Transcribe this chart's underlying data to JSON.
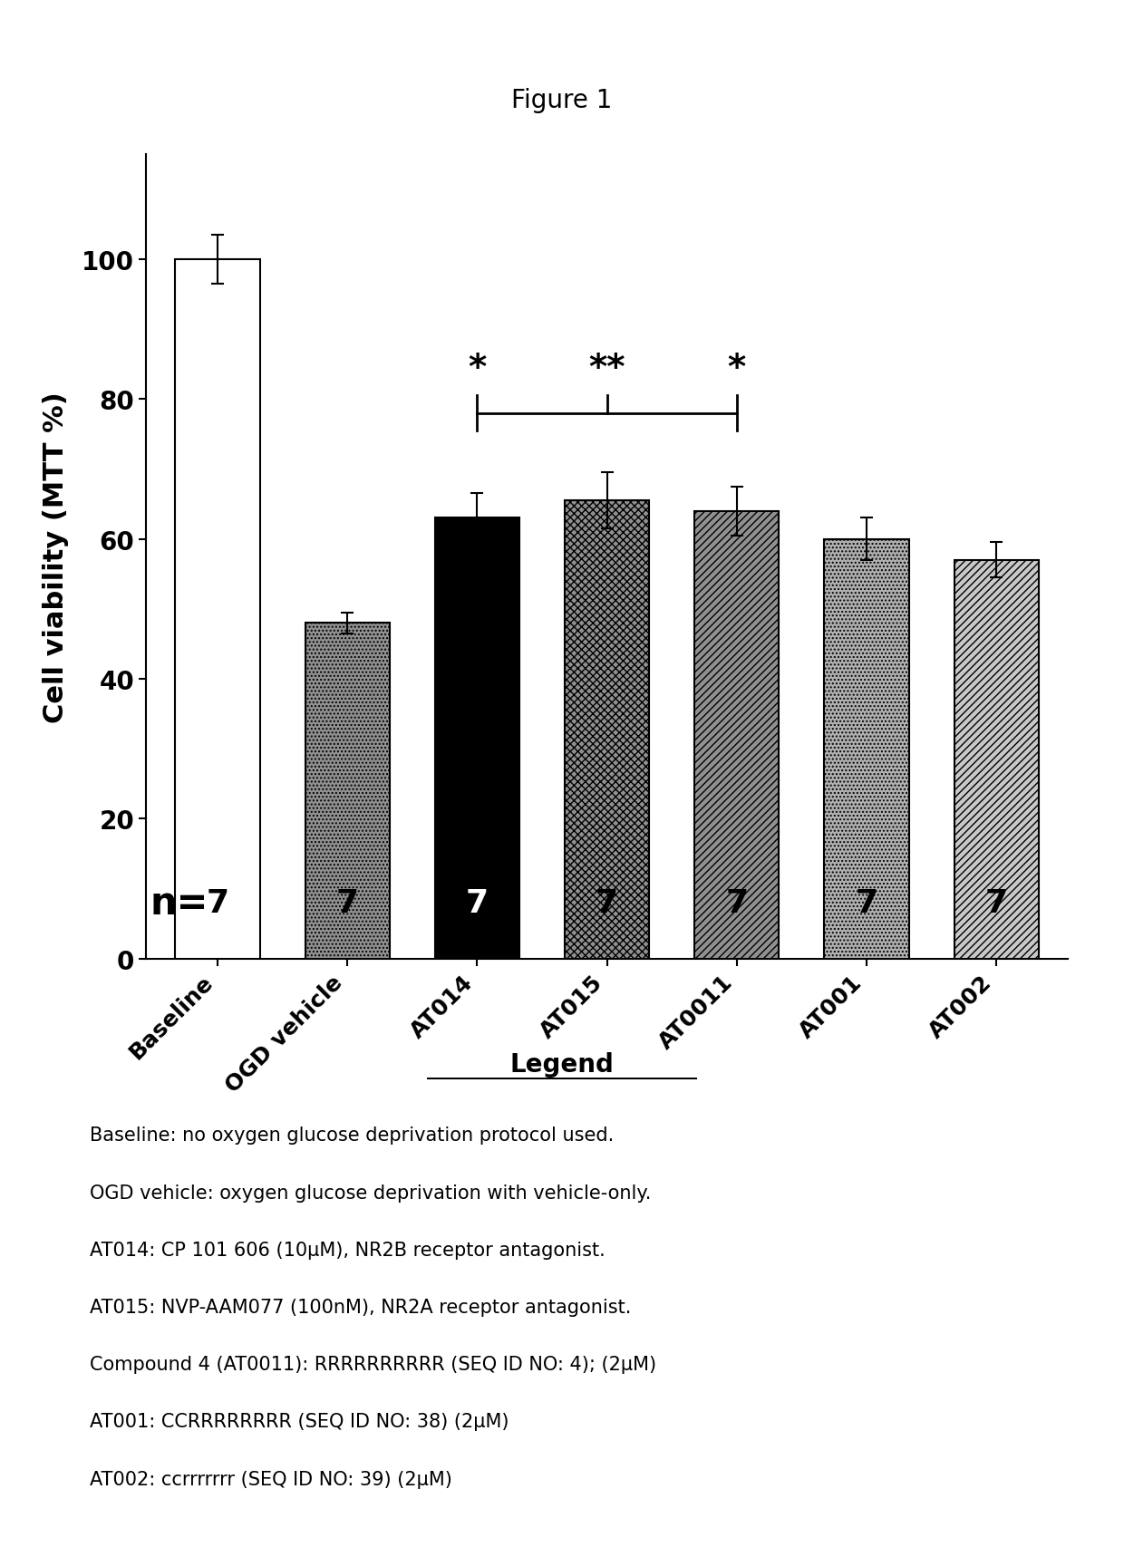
{
  "title": "Figure 1",
  "categories": [
    "Baseline",
    "OGD vehicle",
    "AT014",
    "AT015",
    "AT0011",
    "AT001",
    "AT002"
  ],
  "values": [
    100,
    48,
    63,
    65.5,
    64,
    60,
    57
  ],
  "errors": [
    3.5,
    1.5,
    3.5,
    4.0,
    3.5,
    3.0,
    2.5
  ],
  "n_values": [
    "7",
    "7",
    "7",
    "7",
    "7",
    "7",
    "7"
  ],
  "ylabel": "Cell viability (MTT %)",
  "ylim": [
    0,
    115
  ],
  "yticks": [
    0,
    20,
    40,
    60,
    80,
    100
  ],
  "bar_facecolors": [
    "#FFFFFF",
    "#909090",
    "#000000",
    "#909090",
    "#909090",
    "#B0B0B0",
    "#C8C8C8"
  ],
  "hatch_patterns": [
    "",
    "....",
    "",
    "xxxx",
    "////",
    "....",
    "////"
  ],
  "legend_lines": [
    "Baseline: no oxygen glucose deprivation protocol used.",
    "OGD vehicle: oxygen glucose deprivation with vehicle-only.",
    "AT014: CP 101 606 (10μM), NR2B receptor antagonist.",
    "AT015: NVP-AAM077 (100nM), NR2A receptor antagonist.",
    "Compound 4 (AT0011): RRRRRRRRRR (SEQ ID NO: 4); (2μM)",
    "AT001: CCRRRRRRRR (SEQ ID NO: 38) (2μM)",
    "AT002: ccrrrrrrr (SEQ ID NO: 39) (2μM)"
  ],
  "background_color": "#FFFFFF",
  "n_label": "n="
}
